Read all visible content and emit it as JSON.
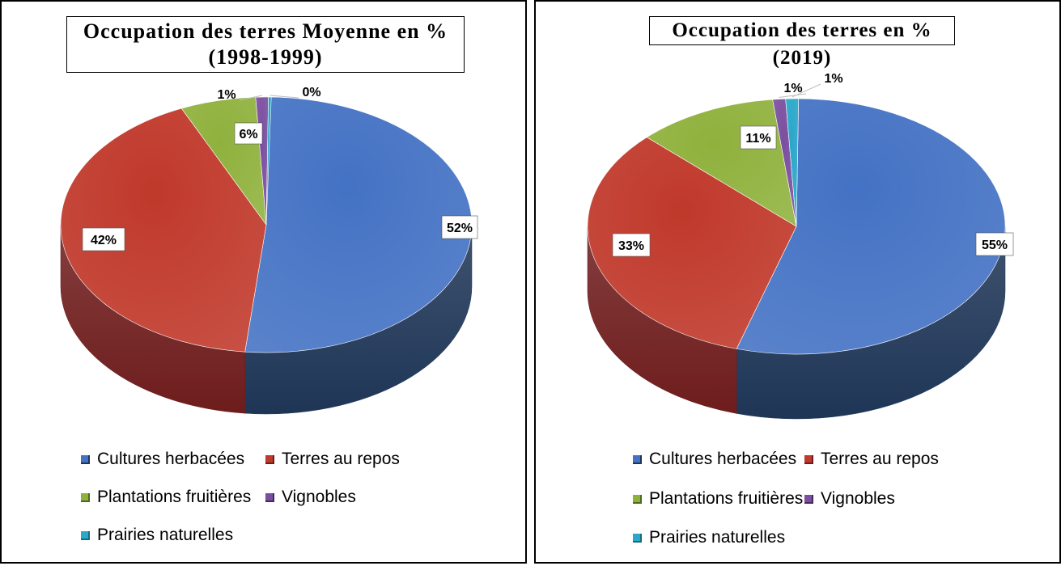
{
  "chart_data": [
    {
      "type": "pie",
      "title": "Occupation des terres Moyenne en % (1998-1999)",
      "categories": [
        "Cultures herbacées",
        "Terres au repos",
        "Plantations fruitières",
        "Vignobles",
        "Prairies naturelles"
      ],
      "values": [
        52,
        42,
        6,
        1,
        0
      ],
      "labels": [
        "52%",
        "42%",
        "6%",
        "1%",
        "0%"
      ],
      "legend_position": "bottom"
    },
    {
      "type": "pie",
      "title": "Occupation des terres  en % (2019)",
      "categories": [
        "Cultures herbacées",
        "Terres au repos",
        "Plantations fruitières",
        "Vignobles",
        "Prairies naturelles"
      ],
      "values": [
        55,
        33,
        11,
        1,
        1
      ],
      "labels": [
        "55%",
        "33%",
        "11%",
        "1%",
        "1%"
      ],
      "legend_position": "bottom"
    }
  ],
  "colors": [
    "#4472c4",
    "#c0392b",
    "#8fb13c",
    "#7b4fa0",
    "#2aa7c9"
  ],
  "side_colors": [
    "#1e3556",
    "#6e1c1c",
    "#4d6a1c",
    "#45285c",
    "#166a80"
  ]
}
